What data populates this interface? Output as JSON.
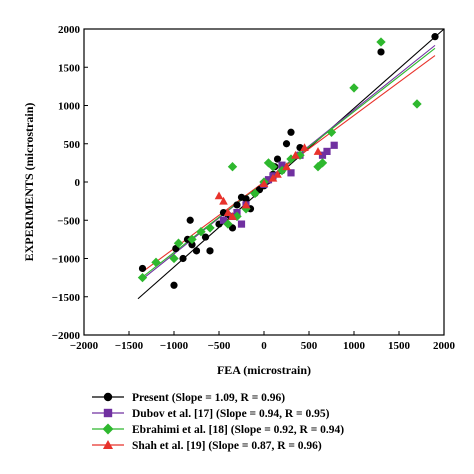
{
  "chart_data": {
    "type": "scatter",
    "xlabel": "FEA (microstrain)",
    "ylabel": "EXPERIMENTS (microstrain)",
    "xlim": [
      -2000,
      2000
    ],
    "ylim": [
      -2000,
      2000
    ],
    "xticks": [
      -2000,
      -1500,
      -1000,
      -500,
      0,
      500,
      1000,
      1500,
      2000
    ],
    "yticks": [
      -2000,
      -1500,
      -1000,
      -500,
      0,
      500,
      1000,
      1500,
      2000
    ],
    "grid": false,
    "legend_position": "bottom",
    "series": [
      {
        "name": "Present (Slope = 1.09, R = 0.96)",
        "marker": "circle",
        "color": "#000000",
        "slope": 1.09,
        "intercept": 0,
        "fit_range": [
          -1400,
          2000
        ],
        "points": [
          [
            -1350,
            -1130
          ],
          [
            -1000,
            -1350
          ],
          [
            -980,
            -870
          ],
          [
            -900,
            -1000
          ],
          [
            -850,
            -750
          ],
          [
            -820,
            -500
          ],
          [
            -800,
            -820
          ],
          [
            -750,
            -900
          ],
          [
            -650,
            -720
          ],
          [
            -600,
            -900
          ],
          [
            -500,
            -550
          ],
          [
            -450,
            -400
          ],
          [
            -400,
            -430
          ],
          [
            -350,
            -600
          ],
          [
            -300,
            -300
          ],
          [
            -250,
            -200
          ],
          [
            -200,
            -220
          ],
          [
            -150,
            -350
          ],
          [
            -100,
            -150
          ],
          [
            -50,
            -100
          ],
          [
            0,
            -50
          ],
          [
            50,
            20
          ],
          [
            100,
            100
          ],
          [
            120,
            200
          ],
          [
            150,
            300
          ],
          [
            200,
            150
          ],
          [
            250,
            500
          ],
          [
            300,
            650
          ],
          [
            400,
            450
          ],
          [
            1300,
            1700
          ],
          [
            1900,
            1900
          ]
        ]
      },
      {
        "name": "Dubov et al. [17] (Slope = 0.94, R = 0.95)",
        "marker": "square",
        "color": "#7030a0",
        "slope": 0.94,
        "intercept": 0,
        "fit_range": [
          -1350,
          1900
        ],
        "points": [
          [
            -450,
            -500
          ],
          [
            -350,
            -450
          ],
          [
            -300,
            -400
          ],
          [
            -250,
            -550
          ],
          [
            -200,
            -300
          ],
          [
            0,
            -30
          ],
          [
            50,
            30
          ],
          [
            100,
            80
          ],
          [
            200,
            220
          ],
          [
            300,
            120
          ],
          [
            400,
            350
          ],
          [
            650,
            350
          ],
          [
            700,
            400
          ],
          [
            780,
            480
          ]
        ]
      },
      {
        "name": "Ebrahimi et al. [18] (Slope = 0.92, R = 0.94)",
        "marker": "diamond",
        "color": "#2eb82e",
        "slope": 0.92,
        "intercept": 0,
        "fit_range": [
          -1350,
          1900
        ],
        "points": [
          [
            -1350,
            -1250
          ],
          [
            -1200,
            -1050
          ],
          [
            -1000,
            -1000
          ],
          [
            -950,
            -800
          ],
          [
            -800,
            -750
          ],
          [
            -700,
            -650
          ],
          [
            -600,
            -600
          ],
          [
            -400,
            -550
          ],
          [
            -350,
            200
          ],
          [
            -300,
            -450
          ],
          [
            -200,
            -350
          ],
          [
            -100,
            -150
          ],
          [
            0,
            0
          ],
          [
            50,
            250
          ],
          [
            100,
            200
          ],
          [
            200,
            150
          ],
          [
            300,
            300
          ],
          [
            400,
            350
          ],
          [
            600,
            200
          ],
          [
            650,
            250
          ],
          [
            750,
            650
          ],
          [
            1000,
            1230
          ],
          [
            1300,
            1830
          ],
          [
            1700,
            1020
          ]
        ]
      },
      {
        "name": "Shah et al. [19] (Slope = 0.87, R = 0.96)",
        "marker": "triangle",
        "color": "#e8322b",
        "slope": 0.87,
        "intercept": 0,
        "fit_range": [
          -1350,
          1900
        ],
        "points": [
          [
            -500,
            -180
          ],
          [
            -450,
            -250
          ],
          [
            -400,
            -400
          ],
          [
            -350,
            -450
          ],
          [
            -200,
            -300
          ],
          [
            0,
            -20
          ],
          [
            100,
            50
          ],
          [
            150,
            100
          ],
          [
            250,
            200
          ],
          [
            350,
            350
          ],
          [
            450,
            450
          ],
          [
            600,
            400
          ]
        ]
      }
    ]
  }
}
